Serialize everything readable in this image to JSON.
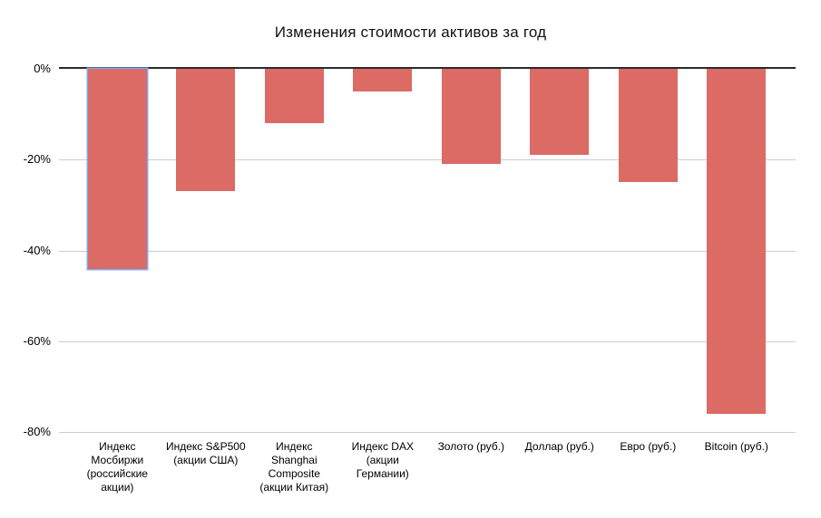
{
  "chart_data": {
    "type": "bar",
    "title": "Изменения стоимости активов за год",
    "categories": [
      "Индекс Мосбиржи (российские акции)",
      "Индекс S&P500 (акции США)",
      "Индекс Shanghai Composite (акции Китая)",
      "Индекс DAX (акции Германии)",
      "Золото (руб.)",
      "Доллар (руб.)",
      "Евро (руб.)",
      "Bitcoin (руб.)"
    ],
    "values": [
      -44,
      -27,
      -12,
      -5,
      -21,
      -19,
      -25,
      -76
    ],
    "unit": "%",
    "xlabel": "",
    "ylabel": "",
    "ylim": [
      -80,
      0
    ],
    "yticks": [
      {
        "value": 0,
        "label": "0%"
      },
      {
        "value": -20,
        "label": "-20%"
      },
      {
        "value": -40,
        "label": "-40%"
      },
      {
        "value": -60,
        "label": "-60%"
      },
      {
        "value": -80,
        "label": "-80%"
      }
    ],
    "grid": true,
    "legend": "none",
    "selected_index": 0,
    "colors": {
      "bar_fill": "#dc6a65",
      "selected_outline": "#7baaf7",
      "axis_line": "#2b2b2b",
      "gridline": "#cccccc",
      "text": "#000000"
    }
  }
}
